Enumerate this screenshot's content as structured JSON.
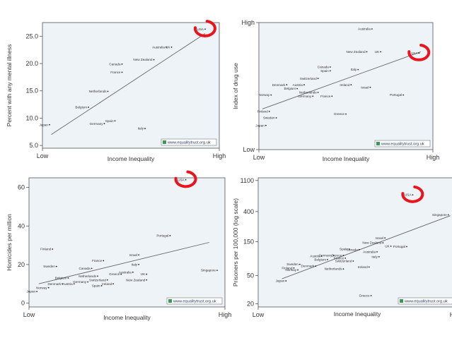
{
  "watermark": "www.equalitytrust.org.uk",
  "highlight_color": "#e8141e",
  "chart_data": [
    {
      "type": "scatter",
      "ylabel": "Percent with any mental illness",
      "xlabel": "Income Inequality",
      "x_ticks": [
        "Low",
        "High"
      ],
      "yticks": [
        "5.0",
        "10.0",
        "15.0",
        "20.0",
        "25.0"
      ],
      "ylim": [
        4.5,
        27.5
      ],
      "scale": "linear",
      "trend": [
        [
          0.05,
          7.0
        ],
        [
          0.92,
          25.5
        ]
      ],
      "highlight": "USA",
      "points": [
        {
          "name": "USA",
          "x": 0.92,
          "y": 26.3
        },
        {
          "name": "UK",
          "x": 0.73,
          "y": 23.0
        },
        {
          "name": "Australia",
          "x": 0.7,
          "y": 23.0
        },
        {
          "name": "New Zealand",
          "x": 0.63,
          "y": 20.7
        },
        {
          "name": "Canada",
          "x": 0.45,
          "y": 19.9
        },
        {
          "name": "France",
          "x": 0.45,
          "y": 18.4
        },
        {
          "name": "Netherlands",
          "x": 0.37,
          "y": 14.9
        },
        {
          "name": "Belgium",
          "x": 0.26,
          "y": 12.0
        },
        {
          "name": "Spain",
          "x": 0.41,
          "y": 9.5
        },
        {
          "name": "Germany",
          "x": 0.35,
          "y": 9.0
        },
        {
          "name": "Japan",
          "x": 0.04,
          "y": 8.8
        },
        {
          "name": "Italy",
          "x": 0.58,
          "y": 8.1
        }
      ]
    },
    {
      "type": "scatter",
      "ylabel": "Index of drug use",
      "xlabel": "Income Inequality",
      "x_ticks": [
        "Low",
        "High"
      ],
      "yticks": [
        "Low",
        "High"
      ],
      "ylim": [
        0,
        100
      ],
      "scale": "linear",
      "trend": [
        [
          0.02,
          32
        ],
        [
          0.93,
          77
        ]
      ],
      "highlight": "USA",
      "points": [
        {
          "name": "Australia",
          "x": 0.65,
          "y": 95
        },
        {
          "name": "New Zealand",
          "x": 0.62,
          "y": 77
        },
        {
          "name": "UK",
          "x": 0.7,
          "y": 77
        },
        {
          "name": "USA",
          "x": 0.92,
          "y": 76
        },
        {
          "name": "Canada",
          "x": 0.41,
          "y": 65
        },
        {
          "name": "Spain",
          "x": 0.41,
          "y": 62
        },
        {
          "name": "Italy",
          "x": 0.57,
          "y": 63
        },
        {
          "name": "Switzerland",
          "x": 0.34,
          "y": 56
        },
        {
          "name": "Denmark",
          "x": 0.16,
          "y": 51
        },
        {
          "name": "Austria",
          "x": 0.26,
          "y": 51
        },
        {
          "name": "Belgium",
          "x": 0.22,
          "y": 48
        },
        {
          "name": "Ireland",
          "x": 0.53,
          "y": 51
        },
        {
          "name": "Israel",
          "x": 0.64,
          "y": 49
        },
        {
          "name": "Netherlands",
          "x": 0.34,
          "y": 45
        },
        {
          "name": "Norway",
          "x": 0.07,
          "y": 43
        },
        {
          "name": "Germany",
          "x": 0.31,
          "y": 42
        },
        {
          "name": "France",
          "x": 0.42,
          "y": 42
        },
        {
          "name": "Portugal",
          "x": 0.83,
          "y": 43
        },
        {
          "name": "Finland",
          "x": 0.06,
          "y": 30
        },
        {
          "name": "Greece",
          "x": 0.5,
          "y": 28
        },
        {
          "name": "Sweden",
          "x": 0.1,
          "y": 25
        },
        {
          "name": "Japan",
          "x": 0.04,
          "y": 19
        }
      ]
    },
    {
      "type": "scatter",
      "ylabel": "Homicides per million",
      "xlabel": "Income Inequality",
      "x_ticks": [
        "Low",
        "High"
      ],
      "yticks": [
        "0",
        "20",
        "40",
        "60"
      ],
      "ylim": [
        -2,
        65
      ],
      "scale": "linear",
      "trend": [
        [
          0.05,
          10.0
        ],
        [
          0.92,
          31.5
        ]
      ],
      "highlight": "USA",
      "points": [
        {
          "name": "USA",
          "x": 0.8,
          "y": 64
        },
        {
          "name": "Portugal",
          "x": 0.72,
          "y": 35
        },
        {
          "name": "Finland",
          "x": 0.12,
          "y": 28
        },
        {
          "name": "Israel",
          "x": 0.56,
          "y": 25
        },
        {
          "name": "France",
          "x": 0.38,
          "y": 22
        },
        {
          "name": "Sweden",
          "x": 0.14,
          "y": 19
        },
        {
          "name": "Canada",
          "x": 0.32,
          "y": 18
        },
        {
          "name": "Italy",
          "x": 0.56,
          "y": 20
        },
        {
          "name": "Australia",
          "x": 0.53,
          "y": 16
        },
        {
          "name": "Singapore",
          "x": 0.96,
          "y": 17
        },
        {
          "name": "Netherlands",
          "x": 0.35,
          "y": 14
        },
        {
          "name": "Greece",
          "x": 0.47,
          "y": 15
        },
        {
          "name": "UK",
          "x": 0.6,
          "y": 15
        },
        {
          "name": "Belgium",
          "x": 0.2,
          "y": 13
        },
        {
          "name": "Switzerland",
          "x": 0.4,
          "y": 12
        },
        {
          "name": "New Zealand",
          "x": 0.6,
          "y": 12
        },
        {
          "name": "Germany",
          "x": 0.3,
          "y": 11
        },
        {
          "name": "Denmark",
          "x": 0.17,
          "y": 10
        },
        {
          "name": "Austria",
          "x": 0.23,
          "y": 10
        },
        {
          "name": "Spain",
          "x": 0.37,
          "y": 9
        },
        {
          "name": "Ireland",
          "x": 0.43,
          "y": 10
        },
        {
          "name": "Norway",
          "x": 0.1,
          "y": 8
        },
        {
          "name": "Japan",
          "x": 0.04,
          "y": 6
        }
      ]
    },
    {
      "type": "scatter",
      "ylabel": "Prisoners per 100,000 (log scale)",
      "xlabel": "Income Inequality",
      "x_ticks": [
        "Low",
        "High"
      ],
      "yticks": [
        "20",
        "50",
        "150",
        "400",
        "1100"
      ],
      "ylim": [
        18,
        1200
      ],
      "scale": "log",
      "trend": [
        [
          0.12,
          45
        ],
        [
          0.97,
          350
        ]
      ],
      "highlight": "USA",
      "points": [
        {
          "name": "USA",
          "x": 0.78,
          "y": 690
        },
        {
          "name": "Singapore",
          "x": 0.96,
          "y": 360
        },
        {
          "name": "Israel",
          "x": 0.64,
          "y": 170
        },
        {
          "name": "New Zealand",
          "x": 0.63,
          "y": 145
        },
        {
          "name": "Portugal",
          "x": 0.75,
          "y": 128
        },
        {
          "name": "UK",
          "x": 0.67,
          "y": 130
        },
        {
          "name": "Spain",
          "x": 0.46,
          "y": 118
        },
        {
          "name": "Canada",
          "x": 0.51,
          "y": 116
        },
        {
          "name": "Australia",
          "x": 0.6,
          "y": 108
        },
        {
          "name": "Germany",
          "x": 0.38,
          "y": 96
        },
        {
          "name": "Greece",
          "x": 0.43,
          "y": 96
        },
        {
          "name": "France",
          "x": 0.44,
          "y": 88
        },
        {
          "name": "Austria",
          "x": 0.32,
          "y": 94
        },
        {
          "name": "Italy",
          "x": 0.61,
          "y": 92
        },
        {
          "name": "Switzerland",
          "x": 0.48,
          "y": 80
        },
        {
          "name": "Belgium",
          "x": 0.35,
          "y": 84
        },
        {
          "name": "Sweden",
          "x": 0.21,
          "y": 72
        },
        {
          "name": "Denmark",
          "x": 0.29,
          "y": 68
        },
        {
          "name": "Finland",
          "x": 0.18,
          "y": 64
        },
        {
          "name": "Netherlands",
          "x": 0.43,
          "y": 62
        },
        {
          "name": "Ireland",
          "x": 0.56,
          "y": 66
        },
        {
          "name": "Norway",
          "x": 0.2,
          "y": 60
        },
        {
          "name": "Japan",
          "x": 0.14,
          "y": 42
        },
        {
          "name": "Greece",
          "x": 0.57,
          "y": 26
        }
      ]
    }
  ]
}
